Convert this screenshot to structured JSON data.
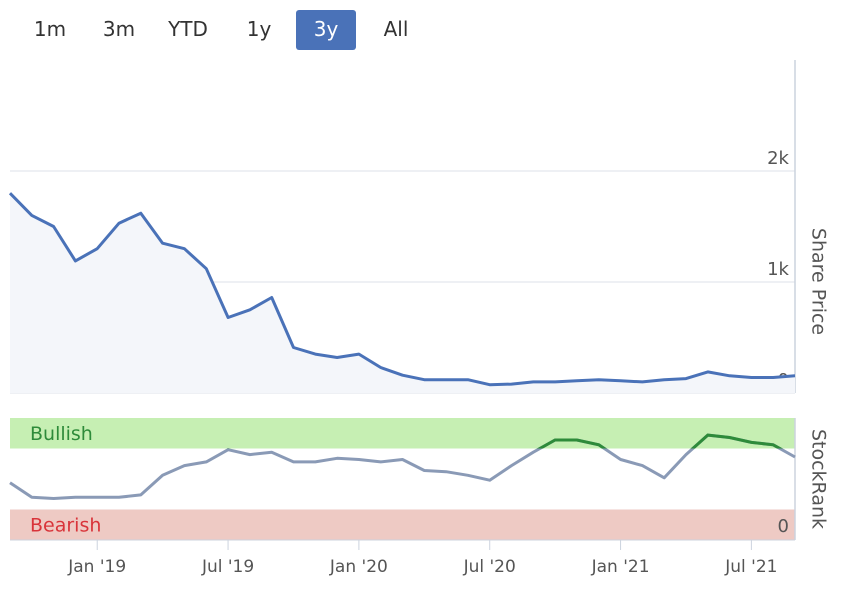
{
  "range_selector": {
    "options": [
      "1m",
      "3m",
      "YTD",
      "1y",
      "3y",
      "All"
    ],
    "selected": 4
  },
  "chart_data": [
    {
      "type": "line",
      "y_label": "Share Price",
      "x": [
        "2018-09",
        "2018-10",
        "2018-11",
        "2018-12",
        "2019-01",
        "2019-02",
        "2019-03",
        "2019-04",
        "2019-05",
        "2019-06",
        "2019-07",
        "2019-08",
        "2019-09",
        "2019-10",
        "2019-11",
        "2019-12",
        "2020-01",
        "2020-02",
        "2020-03",
        "2020-04",
        "2020-05",
        "2020-06",
        "2020-07",
        "2020-08",
        "2020-09",
        "2020-10",
        "2020-11",
        "2020-12",
        "2021-01",
        "2021-02",
        "2021-03",
        "2021-04",
        "2021-05",
        "2021-06",
        "2021-07",
        "2021-08",
        "2021-09"
      ],
      "xlim": [
        "2018-09",
        "2021-09"
      ],
      "series": [
        {
          "name": "Share Price",
          "color": "#4a72b8",
          "values": [
            1800,
            1600,
            1500,
            1190,
            1300,
            1530,
            1620,
            1350,
            1300,
            1120,
            680,
            750,
            860,
            410,
            350,
            320,
            350,
            230,
            160,
            120,
            120,
            120,
            75,
            80,
            100,
            100,
            110,
            120,
            110,
            100,
            120,
            130,
            190,
            155,
            140,
            140,
            155
          ]
        }
      ],
      "ylim": [
        0,
        3000
      ],
      "yticks": [
        {
          "value": 0,
          "label": "0"
        },
        {
          "value": 1000,
          "label": "1k"
        },
        {
          "value": 2000,
          "label": "2k"
        }
      ],
      "grid": true,
      "area_color": "#f4f6fa"
    },
    {
      "type": "line",
      "y_label": "StockRank",
      "x": [
        "2018-09",
        "2018-10",
        "2018-11",
        "2018-12",
        "2019-01",
        "2019-02",
        "2019-03",
        "2019-04",
        "2019-05",
        "2019-06",
        "2019-07",
        "2019-08",
        "2019-09",
        "2019-10",
        "2019-11",
        "2019-12",
        "2020-01",
        "2020-02",
        "2020-03",
        "2020-04",
        "2020-05",
        "2020-06",
        "2020-07",
        "2020-08",
        "2020-09",
        "2020-10",
        "2020-11",
        "2020-12",
        "2021-01",
        "2021-02",
        "2021-03",
        "2021-04",
        "2021-05",
        "2021-06",
        "2021-07",
        "2021-08",
        "2021-09"
      ],
      "xlim": [
        "2018-09",
        "2021-09"
      ],
      "xticks": [
        {
          "value": "2019-01",
          "label": "Jan '19"
        },
        {
          "value": "2019-07",
          "label": "Jul '19"
        },
        {
          "value": "2020-01",
          "label": "Jan '20"
        },
        {
          "value": "2020-07",
          "label": "Jul '20"
        },
        {
          "value": "2021-01",
          "label": "Jan '21"
        },
        {
          "value": "2021-07",
          "label": "Jul '21"
        }
      ],
      "series": [
        {
          "name": "StockRank",
          "color": "#8a9ab6",
          "highlight_color": "#2e8b3a",
          "values": [
            47,
            35,
            34,
            35,
            35,
            35,
            37,
            53,
            61,
            64,
            74,
            70,
            72,
            64,
            64,
            67,
            66,
            64,
            66,
            57,
            56,
            53,
            49,
            61,
            72,
            82,
            82,
            78,
            66,
            61,
            51,
            70,
            86,
            84,
            80,
            78,
            68
          ]
        }
      ],
      "ylim": [
        0,
        100
      ],
      "yticks": [
        0
      ],
      "bands": [
        {
          "label": "Bullish",
          "range": [
            75,
            100
          ],
          "color": "#c6efb3",
          "text_color": "#2e8b3a"
        },
        {
          "label": "Bearish",
          "range": [
            0,
            25
          ],
          "color": "#eecac4",
          "text_color": "#d9343a"
        }
      ]
    }
  ]
}
